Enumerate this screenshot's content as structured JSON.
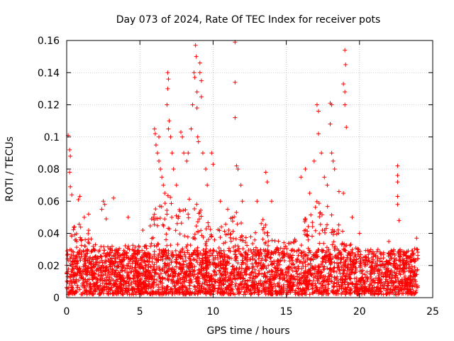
{
  "chart_data": {
    "type": "scatter",
    "title": "Day 073 of 2024, Rate Of TEC Index for receiver pots",
    "xlabel": "GPS time / hours",
    "ylabel": "ROTI / TECUs",
    "xlim": [
      0,
      25
    ],
    "ylim": [
      0,
      0.16
    ],
    "xticks": [
      0,
      5,
      10,
      15,
      20,
      25
    ],
    "yticks": [
      0,
      0.02,
      0.04,
      0.06,
      0.08,
      0.1,
      0.12,
      0.14,
      0.16
    ],
    "xtick_labels": [
      "0",
      "5",
      "10",
      "15",
      "20",
      "25"
    ],
    "ytick_labels": [
      "0",
      "0.02",
      "0.04",
      "0.06",
      "0.08",
      "0.1",
      "0.12",
      "0.14",
      "0.16"
    ],
    "grid": true,
    "marker": "+",
    "marker_color": "#ff0000",
    "series": [
      {
        "name": "ROTI",
        "points": [
          [
            0.1,
            0.101
          ],
          [
            0.2,
            0.092
          ],
          [
            0.25,
            0.088
          ],
          [
            0.2,
            0.078
          ],
          [
            0.25,
            0.069
          ],
          [
            0.35,
            0.064
          ],
          [
            0.9,
            0.063
          ],
          [
            0.8,
            0.061
          ],
          [
            1.2,
            0.05
          ],
          [
            1.5,
            0.052
          ],
          [
            2.5,
            0.06
          ],
          [
            2.6,
            0.058
          ],
          [
            2.4,
            0.055
          ],
          [
            2.7,
            0.049
          ],
          [
            3.2,
            0.062
          ],
          [
            4.2,
            0.05
          ],
          [
            5.2,
            0.042
          ],
          [
            5.8,
            0.049
          ],
          [
            6.0,
            0.105
          ],
          [
            6.05,
            0.102
          ],
          [
            6.3,
            0.1
          ],
          [
            6.1,
            0.095
          ],
          [
            6.2,
            0.09
          ],
          [
            6.3,
            0.085
          ],
          [
            6.4,
            0.08
          ],
          [
            6.5,
            0.075
          ],
          [
            6.6,
            0.07
          ],
          [
            6.7,
            0.065
          ],
          [
            6.9,
            0.14
          ],
          [
            6.95,
            0.136
          ],
          [
            6.9,
            0.13
          ],
          [
            6.85,
            0.12
          ],
          [
            7.0,
            0.11
          ],
          [
            6.95,
            0.105
          ],
          [
            7.1,
            0.1
          ],
          [
            7.2,
            0.09
          ],
          [
            7.3,
            0.08
          ],
          [
            7.5,
            0.07
          ],
          [
            7.8,
            0.103
          ],
          [
            7.9,
            0.1
          ],
          [
            8.0,
            0.09
          ],
          [
            8.2,
            0.085
          ],
          [
            8.3,
            0.09
          ],
          [
            8.5,
            0.105
          ],
          [
            8.6,
            0.12
          ],
          [
            8.7,
            0.14
          ],
          [
            8.75,
            0.137
          ],
          [
            8.8,
            0.157
          ],
          [
            8.85,
            0.15
          ],
          [
            8.9,
            0.128
          ],
          [
            8.9,
            0.118
          ],
          [
            8.95,
            0.1
          ],
          [
            9.0,
            0.097
          ],
          [
            9.1,
            0.146
          ],
          [
            9.1,
            0.14
          ],
          [
            9.2,
            0.135
          ],
          [
            9.2,
            0.125
          ],
          [
            9.3,
            0.09
          ],
          [
            9.5,
            0.08
          ],
          [
            9.6,
            0.07
          ],
          [
            9.9,
            0.09
          ],
          [
            10.0,
            0.083
          ],
          [
            10.5,
            0.06
          ],
          [
            11.0,
            0.055
          ],
          [
            11.5,
            0.159
          ],
          [
            11.5,
            0.134
          ],
          [
            11.5,
            0.112
          ],
          [
            11.6,
            0.082
          ],
          [
            11.7,
            0.08
          ],
          [
            11.9,
            0.07
          ],
          [
            12.0,
            0.06
          ],
          [
            13.0,
            0.06
          ],
          [
            13.6,
            0.078
          ],
          [
            13.7,
            0.072
          ],
          [
            14.0,
            0.06
          ],
          [
            16.0,
            0.075
          ],
          [
            16.3,
            0.08
          ],
          [
            16.6,
            0.065
          ],
          [
            16.9,
            0.085
          ],
          [
            17.1,
            0.12
          ],
          [
            17.2,
            0.116
          ],
          [
            17.2,
            0.102
          ],
          [
            17.4,
            0.09
          ],
          [
            17.6,
            0.075
          ],
          [
            17.8,
            0.07
          ],
          [
            18.0,
            0.121
          ],
          [
            18.1,
            0.12
          ],
          [
            18.0,
            0.108
          ],
          [
            18.1,
            0.09
          ],
          [
            18.2,
            0.085
          ],
          [
            18.3,
            0.08
          ],
          [
            18.6,
            0.066
          ],
          [
            18.9,
            0.133
          ],
          [
            19.0,
            0.154
          ],
          [
            19.05,
            0.145
          ],
          [
            19.0,
            0.128
          ],
          [
            19.0,
            0.12
          ],
          [
            19.1,
            0.106
          ],
          [
            18.9,
            0.065
          ],
          [
            19.5,
            0.05
          ],
          [
            20.0,
            0.04
          ],
          [
            22.0,
            0.035
          ],
          [
            22.6,
            0.082
          ],
          [
            22.6,
            0.076
          ],
          [
            22.6,
            0.072
          ],
          [
            22.6,
            0.063
          ],
          [
            22.6,
            0.058
          ],
          [
            22.7,
            0.048
          ],
          [
            23.5,
            0.025
          ],
          [
            23.9,
            0.037
          ]
        ],
        "dense_band": {
          "note": "dense continuous band of points across the full day",
          "x_range": [
            0,
            24
          ],
          "typical_y_min": 0.002,
          "typical_y_max": 0.03,
          "envelope": [
            [
              0,
              0.03
            ],
            [
              0.5,
              0.045
            ],
            [
              1,
              0.05
            ],
            [
              1.5,
              0.042
            ],
            [
              2,
              0.035
            ],
            [
              2.5,
              0.04
            ],
            [
              3,
              0.035
            ],
            [
              3.5,
              0.03
            ],
            [
              4,
              0.034
            ],
            [
              4.5,
              0.036
            ],
            [
              5,
              0.032
            ],
            [
              5.5,
              0.038
            ],
            [
              6,
              0.055
            ],
            [
              6.5,
              0.06
            ],
            [
              7,
              0.065
            ],
            [
              7.5,
              0.055
            ],
            [
              8,
              0.06
            ],
            [
              8.5,
              0.062
            ],
            [
              9,
              0.06
            ],
            [
              9.5,
              0.05
            ],
            [
              10,
              0.045
            ],
            [
              10.5,
              0.045
            ],
            [
              11,
              0.05
            ],
            [
              11.5,
              0.055
            ],
            [
              12,
              0.045
            ],
            [
              12.5,
              0.04
            ],
            [
              13,
              0.045
            ],
            [
              13.5,
              0.05
            ],
            [
              14,
              0.04
            ],
            [
              14.5,
              0.035
            ],
            [
              15,
              0.035
            ],
            [
              15.5,
              0.035
            ],
            [
              16,
              0.045
            ],
            [
              16.5,
              0.055
            ],
            [
              17,
              0.06
            ],
            [
              17.5,
              0.06
            ],
            [
              18,
              0.055
            ],
            [
              18.5,
              0.05
            ],
            [
              19,
              0.04
            ],
            [
              19.5,
              0.032
            ],
            [
              20,
              0.03
            ],
            [
              20.5,
              0.03
            ],
            [
              21,
              0.028
            ],
            [
              21.5,
              0.028
            ],
            [
              22,
              0.03
            ],
            [
              22.5,
              0.03
            ],
            [
              23,
              0.028
            ],
            [
              23.5,
              0.026
            ],
            [
              24,
              0.035
            ]
          ]
        }
      }
    ]
  }
}
